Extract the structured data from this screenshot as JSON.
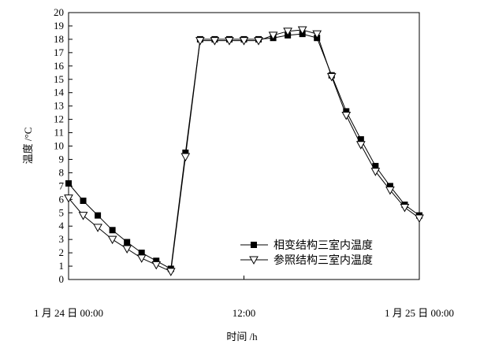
{
  "chart_data": {
    "type": "line",
    "xlabel": "时间 /h",
    "ylabel": "温度 /°C",
    "ylim": [
      0,
      20
    ],
    "yticks": [
      0,
      1,
      2,
      3,
      4,
      5,
      6,
      7,
      8,
      9,
      10,
      11,
      12,
      13,
      14,
      15,
      16,
      17,
      18,
      19,
      20
    ],
    "xlim": [
      0,
      24
    ],
    "xticks": [
      {
        "x": 0,
        "label": "1 月 24 日 00:00"
      },
      {
        "x": 12,
        "label": "12:00"
      },
      {
        "x": 24,
        "label": "1 月 25 日 00:00"
      }
    ],
    "grid": false,
    "legend_position": "bottom-right",
    "series": [
      {
        "name": "相变结构三室内温度",
        "marker": "filled-square",
        "x": [
          0,
          1,
          2,
          3,
          4,
          5,
          6,
          7,
          8,
          9,
          10,
          11,
          12,
          13,
          14,
          15,
          16,
          17,
          18,
          19,
          20,
          21,
          22,
          23,
          24
        ],
        "y": [
          7.2,
          5.9,
          4.8,
          3.7,
          2.8,
          2.0,
          1.4,
          0.8,
          9.5,
          18.0,
          18.0,
          18.0,
          18.0,
          18.0,
          18.1,
          18.3,
          18.4,
          18.1,
          15.3,
          12.6,
          10.5,
          8.5,
          7.0,
          5.6,
          4.8
        ]
      },
      {
        "name": "参照结构三室内温度",
        "marker": "open-triangle-down",
        "x": [
          0,
          1,
          2,
          3,
          4,
          5,
          6,
          7,
          8,
          9,
          10,
          11,
          12,
          13,
          14,
          15,
          16,
          17,
          18,
          19,
          20,
          21,
          22,
          23,
          24
        ],
        "y": [
          6.1,
          4.8,
          3.9,
          3.0,
          2.3,
          1.6,
          1.1,
          0.6,
          9.2,
          17.9,
          17.9,
          17.9,
          17.9,
          17.9,
          18.3,
          18.6,
          18.7,
          18.4,
          15.2,
          12.3,
          10.1,
          8.1,
          6.7,
          5.4,
          4.6
        ]
      }
    ]
  }
}
